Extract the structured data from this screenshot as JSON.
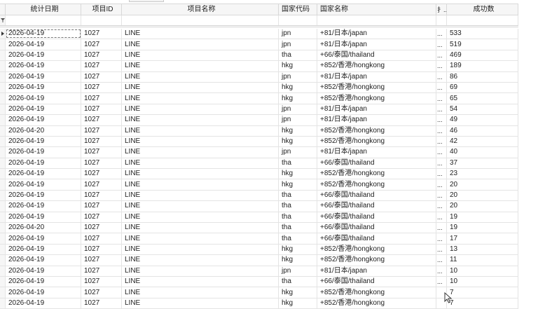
{
  "columns": [
    "统计日期",
    "项目ID",
    "项目名称",
    "国家代码",
    "国家名称",
    "扌..",
    "成功数"
  ],
  "rows": [
    [
      "2026-04-19",
      "1027",
      "LINE",
      "jpn",
      "+81/日本/japan",
      "...",
      "533"
    ],
    [
      "2026-04-19",
      "1027",
      "LINE",
      "jpn",
      "+81/日本/japan",
      "...",
      "519"
    ],
    [
      "2026-04-19",
      "1027",
      "LINE",
      "tha",
      "+66/泰国/thailand",
      "...",
      "469"
    ],
    [
      "2026-04-19",
      "1027",
      "LINE",
      "hkg",
      "+852/香港/hongkong",
      "...",
      "189"
    ],
    [
      "2026-04-19",
      "1027",
      "LINE",
      "jpn",
      "+81/日本/japan",
      "...",
      "86"
    ],
    [
      "2026-04-19",
      "1027",
      "LINE",
      "hkg",
      "+852/香港/hongkong",
      "...",
      "69"
    ],
    [
      "2026-04-19",
      "1027",
      "LINE",
      "hkg",
      "+852/香港/hongkong",
      "...",
      "65"
    ],
    [
      "2026-04-19",
      "1027",
      "LINE",
      "jpn",
      "+81/日本/japan",
      "...",
      "54"
    ],
    [
      "2026-04-19",
      "1027",
      "LINE",
      "jpn",
      "+81/日本/japan",
      "...",
      "49"
    ],
    [
      "2026-04-20",
      "1027",
      "LINE",
      "hkg",
      "+852/香港/hongkong",
      "...",
      "46"
    ],
    [
      "2026-04-19",
      "1027",
      "LINE",
      "hkg",
      "+852/香港/hongkong",
      "...",
      "42"
    ],
    [
      "2026-04-19",
      "1027",
      "LINE",
      "jpn",
      "+81/日本/japan",
      "...",
      "40"
    ],
    [
      "2026-04-19",
      "1027",
      "LINE",
      "tha",
      "+66/泰国/thailand",
      "...",
      "37"
    ],
    [
      "2026-04-19",
      "1027",
      "LINE",
      "hkg",
      "+852/香港/hongkong",
      "...",
      "23"
    ],
    [
      "2026-04-19",
      "1027",
      "LINE",
      "hkg",
      "+852/香港/hongkong",
      "...",
      "20"
    ],
    [
      "2026-04-19",
      "1027",
      "LINE",
      "tha",
      "+66/泰国/thailand",
      "...",
      "20"
    ],
    [
      "2026-04-19",
      "1027",
      "LINE",
      "tha",
      "+66/泰国/thailand",
      "...",
      "20"
    ],
    [
      "2026-04-19",
      "1027",
      "LINE",
      "tha",
      "+66/泰国/thailand",
      "...",
      "19"
    ],
    [
      "2026-04-20",
      "1027",
      "LINE",
      "tha",
      "+66/泰国/thailand",
      "...",
      "19"
    ],
    [
      "2026-04-19",
      "1027",
      "LINE",
      "tha",
      "+66/泰国/thailand",
      "...",
      "17"
    ],
    [
      "2026-04-19",
      "1027",
      "LINE",
      "hkg",
      "+852/香港/hongkong",
      "...",
      "13"
    ],
    [
      "2026-04-19",
      "1027",
      "LINE",
      "hkg",
      "+852/香港/hongkong",
      "...",
      "11"
    ],
    [
      "2026-04-19",
      "1027",
      "LINE",
      "jpn",
      "+81/日本/japan",
      "...",
      "10"
    ],
    [
      "2026-04-19",
      "1027",
      "LINE",
      "tha",
      "+66/泰国/thailand",
      "...",
      "10"
    ],
    [
      "2026-04-19",
      "1027",
      "LINE",
      "hkg",
      "+852/香港/hongkong",
      "",
      "7"
    ],
    [
      "2026-04-19",
      "1027",
      "LINE",
      "hkg",
      "+852/香港/hongkong",
      "",
      "7"
    ]
  ],
  "icons": {
    "filter": "filter-icon",
    "current_row": "row-indicator-arrow"
  }
}
